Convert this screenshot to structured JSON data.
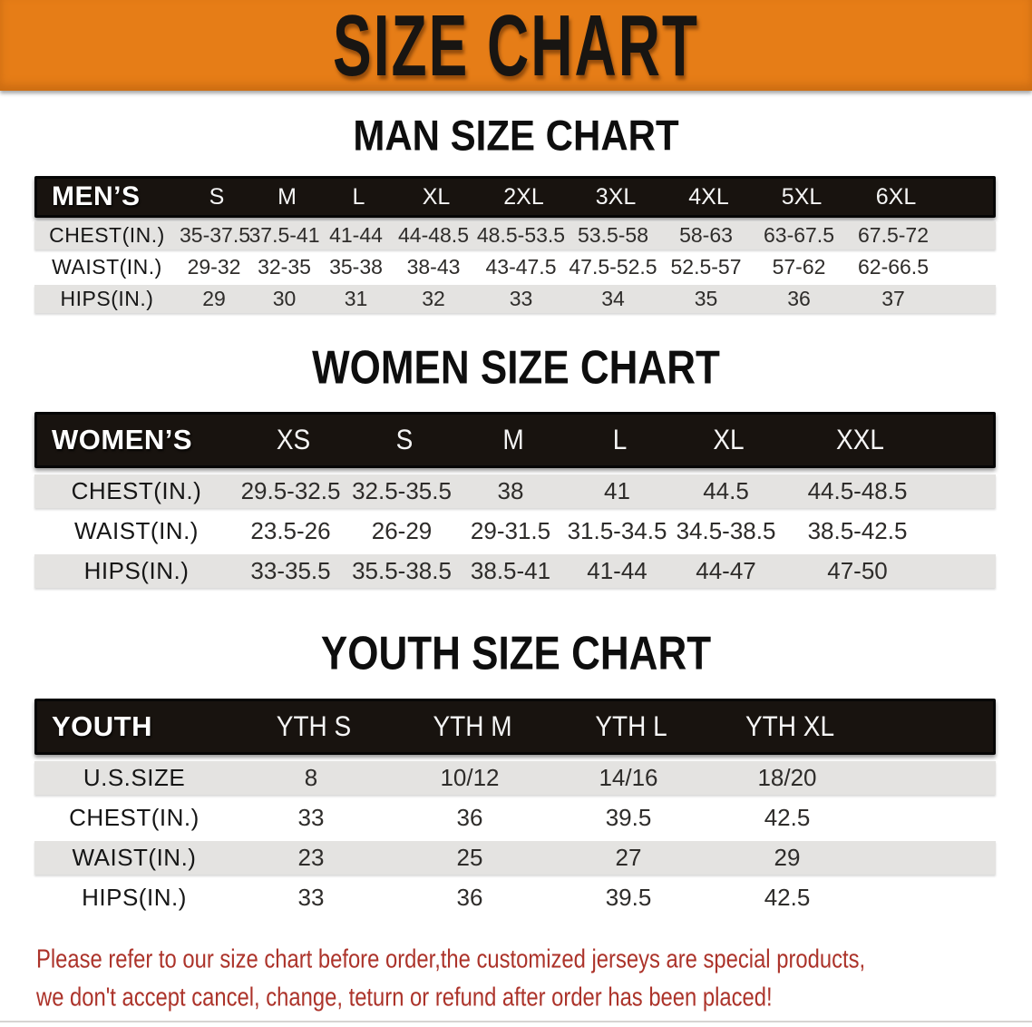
{
  "banner": {
    "title": "SIZE CHART",
    "background_color": "#e67d17",
    "title_color": "#181512"
  },
  "sections": {
    "men": {
      "heading": "MAN SIZE CHART"
    },
    "women": {
      "heading": "WOMEN SIZE CHART"
    },
    "youth": {
      "heading": "YOUTH SIZE CHART"
    }
  },
  "tables": {
    "men": {
      "head": [
        "MEN’S",
        "S",
        "M",
        "L",
        "XL",
        "2XL",
        "3XL",
        "4XL",
        "5XL",
        "6XL"
      ],
      "chest": [
        "CHEST(IN.)",
        "35-37.5",
        "37.5-41",
        "41-44",
        "44-48.5",
        "48.5-53.5",
        "53.5-58",
        "58-63",
        "63-67.5",
        "67.5-72"
      ],
      "waist": [
        "WAIST(IN.)",
        "29-32",
        "32-35",
        "35-38",
        "38-43",
        "43-47.5",
        "47.5-52.5",
        "52.5-57",
        "57-62",
        "62-66.5"
      ],
      "hips": [
        "HIPS(IN.)",
        "29",
        "30",
        "31",
        "32",
        "33",
        "34",
        "35",
        "36",
        "37"
      ]
    },
    "women": {
      "head": [
        "WOMEN’S",
        "XS",
        "S",
        "M",
        "L",
        "XL",
        "XXL"
      ],
      "chest": [
        "CHEST(IN.)",
        "29.5-32.5",
        "32.5-35.5",
        "38",
        "41",
        "44.5",
        "44.5-48.5"
      ],
      "waist": [
        "WAIST(IN.)",
        "23.5-26",
        "26-29",
        "29-31.5",
        "31.5-34.5",
        "34.5-38.5",
        "38.5-42.5"
      ],
      "hips": [
        "HIPS(IN.)",
        "33-35.5",
        "35.5-38.5",
        "38.5-41",
        "41-44",
        "44-47",
        "47-50"
      ]
    },
    "youth": {
      "head": [
        "YOUTH",
        "YTH S",
        "YTH M",
        "YTH L",
        "YTH XL"
      ],
      "ussize": [
        "U.S.SIZE",
        "8",
        "10/12",
        "14/16",
        "18/20"
      ],
      "chest": [
        "CHEST(IN.)",
        "33",
        "36",
        "39.5",
        "42.5"
      ],
      "waist": [
        "WAIST(IN.)",
        "23",
        "25",
        "27",
        "29"
      ],
      "hips": [
        "HIPS(IN.)",
        "33",
        "36",
        "39.5",
        "42.5"
      ]
    }
  },
  "disclaimer": {
    "line1": "Please refer to our size chart before order,the customized jerseys are special products,",
    "line2": "we don't accept cancel, change, teturn or refund after order has been placed!",
    "text_color": "#ac332a"
  },
  "colors": {
    "table_header_bg": "#18130f",
    "row_stripe": "#e4e3e1"
  }
}
